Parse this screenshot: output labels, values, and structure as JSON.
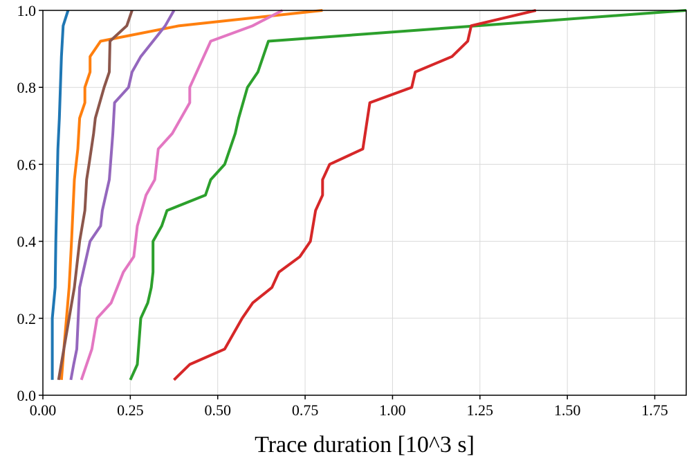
{
  "chart_data": {
    "type": "line",
    "title": "",
    "xlabel": "Trace duration [10^3 s]",
    "ylabel": "",
    "xlim": [
      0.0,
      1.84
    ],
    "ylim": [
      0.0,
      1.0
    ],
    "grid": true,
    "x_ticks": [
      0.0,
      0.25,
      0.5,
      0.75,
      1.0,
      1.25,
      1.5,
      1.75
    ],
    "x_tick_labels": [
      "0.00",
      "0.25",
      "0.50",
      "0.75",
      "1.00",
      "1.25",
      "1.50",
      "1.75"
    ],
    "y_ticks": [
      0.0,
      0.2,
      0.4,
      0.6,
      0.8,
      1.0
    ],
    "y_tick_labels": [
      "0.0",
      "0.2",
      "0.4",
      "0.6",
      "0.8",
      "1.0"
    ],
    "series": [
      {
        "name": "blue",
        "color": "#1f77b4",
        "points": [
          [
            0.027,
            0.04
          ],
          [
            0.027,
            0.2
          ],
          [
            0.035,
            0.28
          ],
          [
            0.037,
            0.4
          ],
          [
            0.039,
            0.48
          ],
          [
            0.041,
            0.56
          ],
          [
            0.043,
            0.64
          ],
          [
            0.047,
            0.72
          ],
          [
            0.05,
            0.8
          ],
          [
            0.053,
            0.88
          ],
          [
            0.058,
            0.96
          ],
          [
            0.072,
            1.0
          ]
        ]
      },
      {
        "name": "orange",
        "color": "#ff7f0e",
        "points": [
          [
            0.053,
            0.04
          ],
          [
            0.06,
            0.12
          ],
          [
            0.075,
            0.28
          ],
          [
            0.082,
            0.4
          ],
          [
            0.09,
            0.56
          ],
          [
            0.1,
            0.64
          ],
          [
            0.105,
            0.72
          ],
          [
            0.12,
            0.76
          ],
          [
            0.12,
            0.8
          ],
          [
            0.135,
            0.84
          ],
          [
            0.135,
            0.88
          ],
          [
            0.165,
            0.92
          ],
          [
            0.39,
            0.96
          ],
          [
            0.8,
            1.0
          ]
        ]
      },
      {
        "name": "green",
        "color": "#2ca02c",
        "points": [
          [
            0.25,
            0.04
          ],
          [
            0.27,
            0.08
          ],
          [
            0.28,
            0.2
          ],
          [
            0.3,
            0.24
          ],
          [
            0.31,
            0.28
          ],
          [
            0.315,
            0.32
          ],
          [
            0.315,
            0.4
          ],
          [
            0.34,
            0.44
          ],
          [
            0.355,
            0.48
          ],
          [
            0.465,
            0.52
          ],
          [
            0.48,
            0.56
          ],
          [
            0.52,
            0.6
          ],
          [
            0.55,
            0.68
          ],
          [
            0.56,
            0.72
          ],
          [
            0.585,
            0.8
          ],
          [
            0.615,
            0.84
          ],
          [
            0.645,
            0.92
          ],
          [
            1.84,
            1.0
          ]
        ]
      },
      {
        "name": "red",
        "color": "#d62728",
        "points": [
          [
            0.375,
            0.04
          ],
          [
            0.42,
            0.08
          ],
          [
            0.52,
            0.12
          ],
          [
            0.57,
            0.2
          ],
          [
            0.6,
            0.24
          ],
          [
            0.655,
            0.28
          ],
          [
            0.675,
            0.32
          ],
          [
            0.735,
            0.36
          ],
          [
            0.765,
            0.4
          ],
          [
            0.78,
            0.48
          ],
          [
            0.8,
            0.52
          ],
          [
            0.8,
            0.56
          ],
          [
            0.82,
            0.6
          ],
          [
            0.915,
            0.64
          ],
          [
            0.935,
            0.76
          ],
          [
            1.055,
            0.8
          ],
          [
            1.065,
            0.84
          ],
          [
            1.17,
            0.88
          ],
          [
            1.215,
            0.92
          ],
          [
            1.225,
            0.96
          ],
          [
            1.41,
            1.0
          ]
        ]
      },
      {
        "name": "purple",
        "color": "#9467bd",
        "points": [
          [
            0.08,
            0.04
          ],
          [
            0.088,
            0.08
          ],
          [
            0.097,
            0.12
          ],
          [
            0.105,
            0.28
          ],
          [
            0.115,
            0.32
          ],
          [
            0.135,
            0.4
          ],
          [
            0.165,
            0.44
          ],
          [
            0.17,
            0.48
          ],
          [
            0.19,
            0.56
          ],
          [
            0.2,
            0.68
          ],
          [
            0.205,
            0.76
          ],
          [
            0.245,
            0.8
          ],
          [
            0.255,
            0.84
          ],
          [
            0.28,
            0.88
          ],
          [
            0.35,
            0.96
          ],
          [
            0.375,
            1.0
          ]
        ]
      },
      {
        "name": "brown",
        "color": "#8c564b",
        "points": [
          [
            0.045,
            0.04
          ],
          [
            0.06,
            0.12
          ],
          [
            0.075,
            0.2
          ],
          [
            0.09,
            0.28
          ],
          [
            0.105,
            0.4
          ],
          [
            0.12,
            0.48
          ],
          [
            0.125,
            0.56
          ],
          [
            0.132,
            0.6
          ],
          [
            0.145,
            0.68
          ],
          [
            0.15,
            0.72
          ],
          [
            0.175,
            0.8
          ],
          [
            0.19,
            0.84
          ],
          [
            0.192,
            0.92
          ],
          [
            0.24,
            0.96
          ],
          [
            0.255,
            1.0
          ]
        ]
      },
      {
        "name": "pink",
        "color": "#e377c2",
        "points": [
          [
            0.11,
            0.04
          ],
          [
            0.14,
            0.12
          ],
          [
            0.155,
            0.2
          ],
          [
            0.195,
            0.24
          ],
          [
            0.23,
            0.32
          ],
          [
            0.26,
            0.36
          ],
          [
            0.27,
            0.44
          ],
          [
            0.295,
            0.52
          ],
          [
            0.32,
            0.56
          ],
          [
            0.33,
            0.64
          ],
          [
            0.37,
            0.68
          ],
          [
            0.42,
            0.76
          ],
          [
            0.42,
            0.8
          ],
          [
            0.46,
            0.88
          ],
          [
            0.48,
            0.92
          ],
          [
            0.6,
            0.96
          ],
          [
            0.685,
            1.0
          ]
        ]
      }
    ]
  }
}
